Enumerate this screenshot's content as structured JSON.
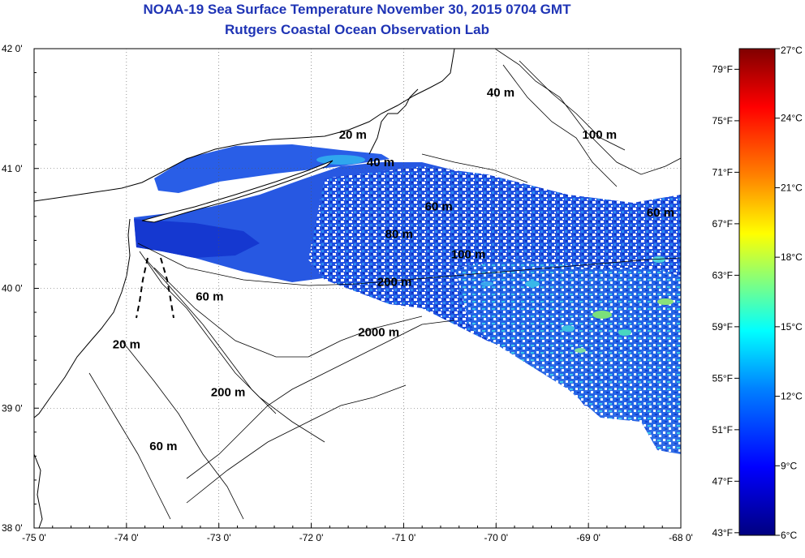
{
  "title": "NOAA-19 Sea Surface Temperature November 30, 2015 0704 GMT",
  "subtitle": "Rutgers Coastal Ocean Observation Lab",
  "map": {
    "lon_range": [
      -75,
      -68
    ],
    "lat_range": [
      38,
      42
    ],
    "lon_ticks": [
      "-75 0'",
      "-74 0'",
      "-73 0'",
      "-72 0'",
      "-71 0'",
      "-70 0'",
      "-69 0'",
      "-68 0'"
    ],
    "lat_ticks": [
      "42 0'",
      "41 0'",
      "40 0'",
      "39 0'",
      "38 0'"
    ],
    "grid": "dotted"
  },
  "depth_contour_labels": [
    {
      "text": "20 m",
      "lon": -71.55,
      "lat": 41.25
    },
    {
      "text": "40 m",
      "lon": -69.95,
      "lat": 41.6
    },
    {
      "text": "100 m",
      "lon": -68.88,
      "lat": 41.25
    },
    {
      "text": "40 m",
      "lon": -71.25,
      "lat": 41.02
    },
    {
      "text": "60 m",
      "lon": -70.62,
      "lat": 40.65
    },
    {
      "text": "80 m",
      "lon": -71.05,
      "lat": 40.42
    },
    {
      "text": "100 m",
      "lon": -70.3,
      "lat": 40.25
    },
    {
      "text": "200 m",
      "lon": -71.1,
      "lat": 40.02
    },
    {
      "text": "60 m",
      "lon": -68.22,
      "lat": 40.6
    },
    {
      "text": "60 m",
      "lon": -73.1,
      "lat": 39.9
    },
    {
      "text": "2000 m",
      "lon": -71.27,
      "lat": 39.6
    },
    {
      "text": "20 m",
      "lon": -74.0,
      "lat": 39.5
    },
    {
      "text": "200 m",
      "lon": -72.9,
      "lat": 39.1
    },
    {
      "text": "60 m",
      "lon": -73.6,
      "lat": 38.65
    }
  ],
  "colorbar": {
    "fahrenheit_labels": [
      "79°F",
      "75°F",
      "71°F",
      "67°F",
      "63°F",
      "59°F",
      "55°F",
      "51°F",
      "47°F",
      "43°F"
    ],
    "celsius_labels": [
      "27°C",
      "24°C",
      "21°C",
      "18°C",
      "15°C",
      "12°C",
      "9°C",
      "6°C"
    ],
    "min_c": 6,
    "max_c": 27,
    "colors": [
      "#000080",
      "#0000ff",
      "#0080ff",
      "#00ffff",
      "#80ff80",
      "#ffff00",
      "#ff8000",
      "#ff0000",
      "#800000"
    ]
  }
}
